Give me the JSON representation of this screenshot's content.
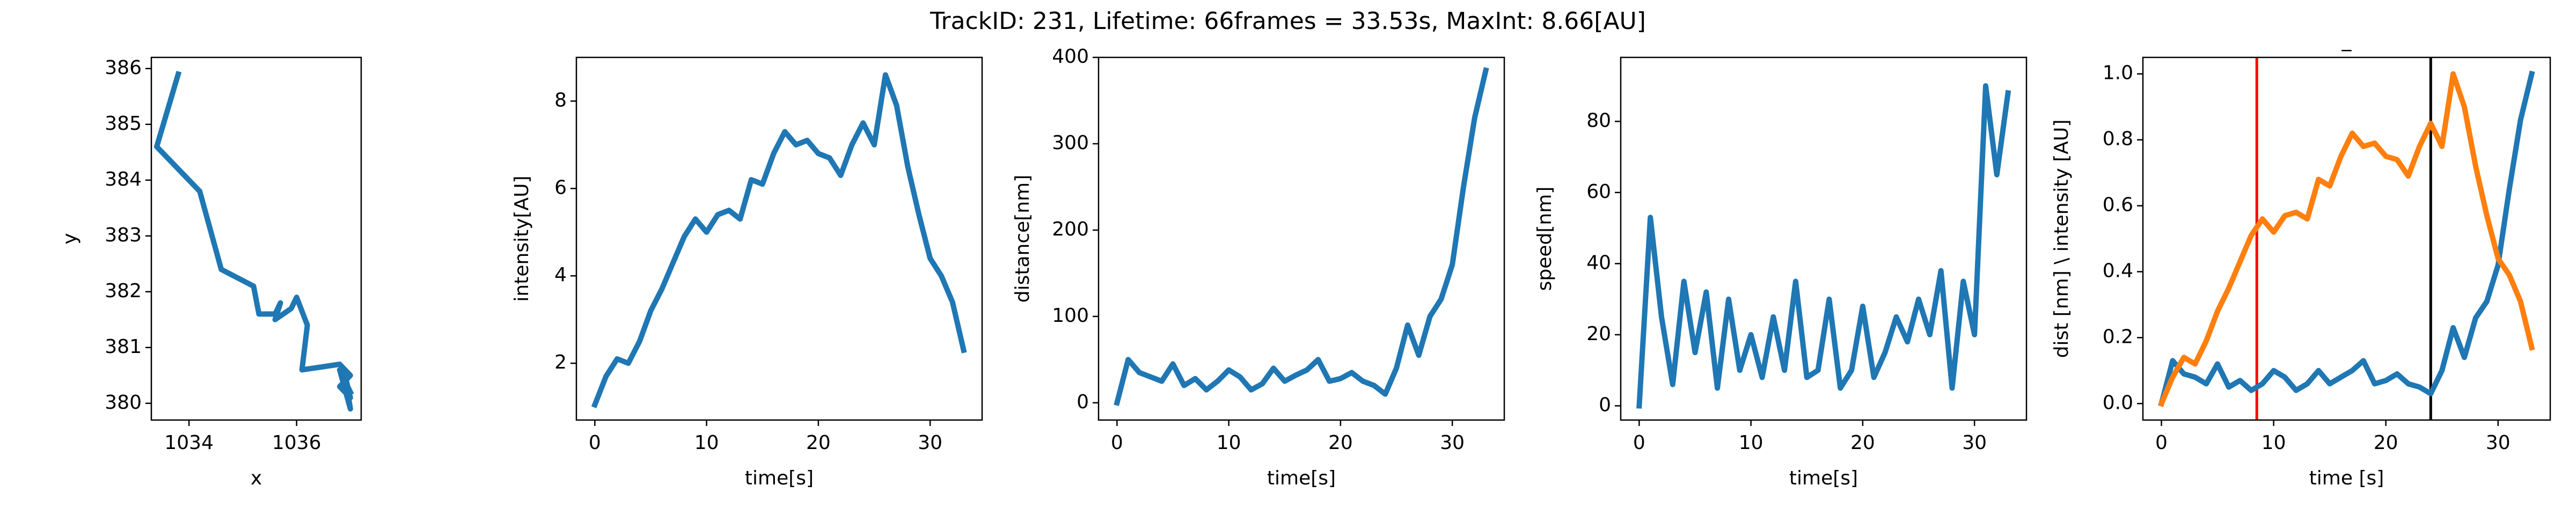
{
  "title": "TrackID: 231, Lifetime: 66frames = 33.53s, MaxInt: 8.66[AU]",
  "chart_data": [
    {
      "type": "line",
      "xlabel": "x",
      "ylabel": "y",
      "x": [
        1033.8,
        1033.4,
        1034.2,
        1034.6,
        1035.2,
        1035.3,
        1035.6,
        1035.7,
        1035.6,
        1035.9,
        1036.0,
        1036.2,
        1036.1,
        1036.8,
        1037.0,
        1036.8,
        1037.0,
        1036.9,
        1037.0,
        1036.8,
        1037.0
      ],
      "series": [
        {
          "color": "#1f77b4",
          "values": [
            385.9,
            384.6,
            383.8,
            382.4,
            382.1,
            381.6,
            381.6,
            381.8,
            381.5,
            381.7,
            381.9,
            381.4,
            380.6,
            380.7,
            380.5,
            380.3,
            380.1,
            380.5,
            379.9,
            380.6,
            380.2
          ]
        }
      ],
      "xlim": [
        1033.3,
        1037.2
      ],
      "xticks": [
        1034,
        1036
      ],
      "ylim": [
        379.7,
        386.2
      ],
      "yticks": [
        380,
        381,
        382,
        383,
        384,
        385,
        386
      ]
    },
    {
      "type": "line",
      "xlabel": "time[s]",
      "ylabel": "intensity[AU]",
      "x": [
        0,
        1,
        2,
        3,
        4,
        5,
        6,
        7,
        8,
        9,
        10,
        11,
        12,
        13,
        14,
        15,
        16,
        17,
        18,
        19,
        20,
        21,
        22,
        23,
        24,
        25,
        26,
        27,
        28,
        29,
        30,
        31,
        32,
        33
      ],
      "series": [
        {
          "color": "#1f77b4",
          "values": [
            1.05,
            1.7,
            2.1,
            2.0,
            2.5,
            3.2,
            3.7,
            4.3,
            4.9,
            5.3,
            5.0,
            5.4,
            5.5,
            5.3,
            6.2,
            6.1,
            6.8,
            7.3,
            7.0,
            7.1,
            6.8,
            6.7,
            6.3,
            7.0,
            7.5,
            7.0,
            8.6,
            7.9,
            6.5,
            5.4,
            4.4,
            4.0,
            3.4,
            2.3
          ]
        }
      ],
      "xlim": [
        -1.65,
        34.65
      ],
      "xticks": [
        0,
        10,
        20,
        30
      ],
      "ylim": [
        0.7,
        9.0
      ],
      "yticks": [
        2,
        4,
        6,
        8
      ]
    },
    {
      "type": "line",
      "xlabel": "time[s]",
      "ylabel": "distance[nm]",
      "x": [
        0,
        1,
        2,
        3,
        4,
        5,
        6,
        7,
        8,
        9,
        10,
        11,
        12,
        13,
        14,
        15,
        16,
        17,
        18,
        19,
        20,
        21,
        22,
        23,
        24,
        25,
        26,
        27,
        28,
        29,
        30,
        31,
        32,
        33
      ],
      "series": [
        {
          "color": "#1f77b4",
          "values": [
            0,
            50,
            35,
            30,
            25,
            45,
            20,
            28,
            15,
            25,
            38,
            30,
            15,
            22,
            40,
            25,
            32,
            38,
            50,
            25,
            28,
            35,
            25,
            20,
            10,
            40,
            90,
            55,
            100,
            120,
            160,
            250,
            330,
            385
          ]
        }
      ],
      "xlim": [
        -1.65,
        34.65
      ],
      "xticks": [
        0,
        10,
        20,
        30
      ],
      "ylim": [
        -20,
        400
      ],
      "yticks": [
        0,
        100,
        200,
        300,
        400
      ]
    },
    {
      "type": "line",
      "xlabel": "time[s]",
      "ylabel": "speed[nm]",
      "x": [
        0,
        1,
        2,
        3,
        4,
        5,
        6,
        7,
        8,
        9,
        10,
        11,
        12,
        13,
        14,
        15,
        16,
        17,
        18,
        19,
        20,
        21,
        22,
        23,
        24,
        25,
        26,
        27,
        28,
        29,
        30,
        31,
        32,
        33
      ],
      "series": [
        {
          "color": "#1f77b4",
          "values": [
            0,
            53,
            25,
            6,
            35,
            15,
            32,
            5,
            30,
            10,
            20,
            8,
            25,
            10,
            35,
            8,
            10,
            30,
            5,
            10,
            28,
            8,
            15,
            25,
            18,
            30,
            20,
            38,
            5,
            35,
            20,
            90,
            65,
            88
          ]
        }
      ],
      "xlim": [
        -1.65,
        34.65
      ],
      "xticks": [
        0,
        10,
        20,
        30
      ],
      "ylim": [
        -4,
        98
      ],
      "yticks": [
        0,
        20,
        40,
        60,
        80
      ]
    },
    {
      "type": "line",
      "title": "_",
      "xlabel": "time [s]",
      "ylabel": "dist [nm] \\ intensity [AU]",
      "x": [
        0,
        1,
        2,
        3,
        4,
        5,
        6,
        7,
        8,
        9,
        10,
        11,
        12,
        13,
        14,
        15,
        16,
        17,
        18,
        19,
        20,
        21,
        22,
        23,
        24,
        25,
        26,
        27,
        28,
        29,
        30,
        31,
        32,
        33
      ],
      "series": [
        {
          "color": "#1f77b4",
          "values": [
            0,
            0.13,
            0.09,
            0.08,
            0.06,
            0.12,
            0.05,
            0.07,
            0.04,
            0.06,
            0.1,
            0.08,
            0.04,
            0.06,
            0.1,
            0.06,
            0.08,
            0.1,
            0.13,
            0.06,
            0.07,
            0.09,
            0.06,
            0.05,
            0.03,
            0.1,
            0.23,
            0.14,
            0.26,
            0.31,
            0.42,
            0.65,
            0.86,
            1.0
          ]
        },
        {
          "color": "#ff7f0e",
          "values": [
            0,
            0.08,
            0.14,
            0.12,
            0.19,
            0.28,
            0.35,
            0.43,
            0.51,
            0.56,
            0.52,
            0.57,
            0.58,
            0.56,
            0.68,
            0.66,
            0.75,
            0.82,
            0.78,
            0.79,
            0.75,
            0.74,
            0.69,
            0.78,
            0.85,
            0.78,
            1.0,
            0.9,
            0.72,
            0.57,
            0.44,
            0.39,
            0.31,
            0.17
          ]
        }
      ],
      "vlines": [
        {
          "x": 8.5,
          "color": "#ff0000"
        },
        {
          "x": 24,
          "color": "#000000"
        }
      ],
      "xlim": [
        -1.65,
        34.65
      ],
      "xticks": [
        0,
        10,
        20,
        30
      ],
      "ylim": [
        -0.05,
        1.05
      ],
      "yticks": [
        {
          "value": 0,
          "label": "0.0"
        },
        0.2,
        0.4,
        0.6,
        0.8,
        {
          "value": 1,
          "label": "1.0"
        }
      ]
    }
  ]
}
